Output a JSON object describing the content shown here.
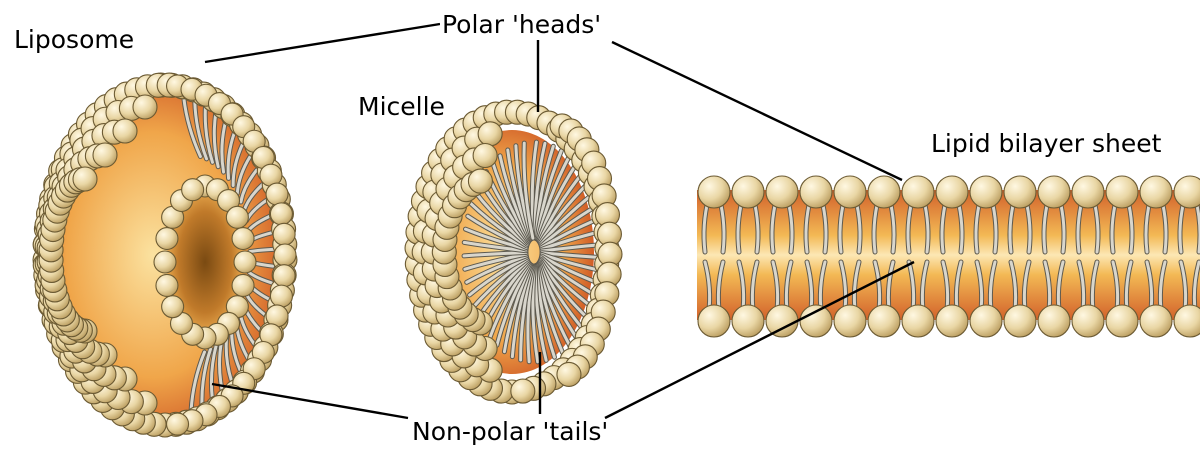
{
  "labels": {
    "liposome": "Liposome",
    "heads": "Polar 'heads'",
    "micelle": "Micelle",
    "bilayer": "Lipid bilayer sheet",
    "tails": "Non-polar 'tails'"
  },
  "colors": {
    "head_fill": "#e9d6a4",
    "head_highlight": "#fff8e2",
    "head_stroke": "#6b5a33",
    "tail_fill": "#d9d6cc",
    "tail_stroke": "#5d5a50",
    "core_light": "#f6c86a",
    "core_dark": "#c84a1e",
    "leader": "#000000"
  },
  "bilayer": {
    "lipid_pairs": 15
  }
}
